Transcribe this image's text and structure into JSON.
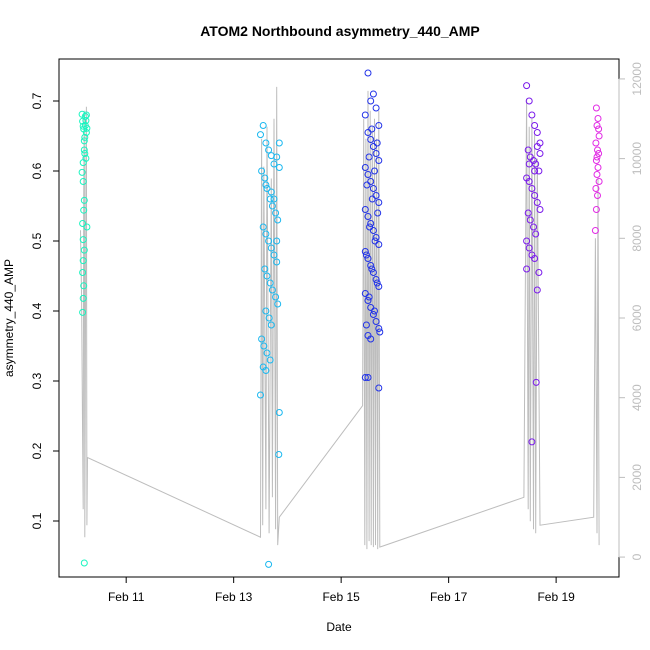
{
  "chart_data": {
    "type": "scatter",
    "title": "ATOM2 Northbound asymmetry_440_AMP",
    "xlabel": "Date",
    "ylabel": "asymmetry_440_AMP",
    "x_ticks": [
      "Feb 11",
      "Feb 13",
      "Feb 15",
      "Feb 17",
      "Feb 19"
    ],
    "x_tick_positions_days": [
      11,
      13,
      15,
      17,
      19
    ],
    "xlim_days": [
      9.75,
      20.17
    ],
    "ylim": [
      0.02,
      0.76
    ],
    "y_ticks": [
      0.1,
      0.2,
      0.3,
      0.4,
      0.5,
      0.6,
      0.7
    ],
    "y2lim": [
      -500,
      12500
    ],
    "y2_ticks": [
      0,
      2000,
      4000,
      6000,
      8000,
      10000,
      12000
    ],
    "grid": false,
    "line_color": "#bdbdbd",
    "series": [
      {
        "color": "#19f5c0",
        "points": [
          [
            10.18,
            0.681
          ],
          [
            10.2,
            0.664
          ],
          [
            10.22,
            0.643
          ],
          [
            10.24,
            0.678
          ],
          [
            10.26,
            0.655
          ],
          [
            10.19,
            0.671
          ],
          [
            10.21,
            0.66
          ],
          [
            10.23,
            0.648
          ],
          [
            10.25,
            0.672
          ],
          [
            10.27,
            0.661
          ],
          [
            10.18,
            0.598
          ],
          [
            10.2,
            0.585
          ],
          [
            10.22,
            0.558
          ],
          [
            10.21,
            0.544
          ],
          [
            10.19,
            0.525
          ],
          [
            10.2,
            0.502
          ],
          [
            10.22,
            0.487
          ],
          [
            10.2,
            0.472
          ],
          [
            10.19,
            0.455
          ],
          [
            10.21,
            0.436
          ],
          [
            10.2,
            0.418
          ],
          [
            10.19,
            0.398
          ],
          [
            10.23,
            0.625
          ],
          [
            10.25,
            0.618
          ],
          [
            10.27,
            0.52
          ],
          [
            10.22,
            0.04
          ],
          [
            10.24,
            0.665
          ],
          [
            10.26,
            0.68
          ],
          [
            10.2,
            0.612
          ],
          [
            10.22,
            0.63
          ]
        ]
      },
      {
        "color": "#1ab8f0",
        "points": [
          [
            13.5,
            0.652
          ],
          [
            13.55,
            0.665
          ],
          [
            13.6,
            0.64
          ],
          [
            13.65,
            0.63
          ],
          [
            13.7,
            0.622
          ],
          [
            13.75,
            0.61
          ],
          [
            13.8,
            0.62
          ],
          [
            13.85,
            0.605
          ],
          [
            13.52,
            0.6
          ],
          [
            13.58,
            0.59
          ],
          [
            13.62,
            0.575
          ],
          [
            13.68,
            0.56
          ],
          [
            13.72,
            0.55
          ],
          [
            13.78,
            0.54
          ],
          [
            13.82,
            0.53
          ],
          [
            13.55,
            0.52
          ],
          [
            13.6,
            0.51
          ],
          [
            13.65,
            0.5
          ],
          [
            13.7,
            0.49
          ],
          [
            13.75,
            0.48
          ],
          [
            13.8,
            0.47
          ],
          [
            13.58,
            0.46
          ],
          [
            13.62,
            0.45
          ],
          [
            13.68,
            0.44
          ],
          [
            13.72,
            0.43
          ],
          [
            13.78,
            0.42
          ],
          [
            13.82,
            0.41
          ],
          [
            13.6,
            0.4
          ],
          [
            13.66,
            0.39
          ],
          [
            13.7,
            0.38
          ],
          [
            13.52,
            0.36
          ],
          [
            13.56,
            0.35
          ],
          [
            13.62,
            0.34
          ],
          [
            13.68,
            0.33
          ],
          [
            13.55,
            0.32
          ],
          [
            13.6,
            0.315
          ],
          [
            13.5,
            0.28
          ],
          [
            13.85,
            0.255
          ],
          [
            13.84,
            0.195
          ],
          [
            13.65,
            0.038
          ],
          [
            13.75,
            0.56
          ],
          [
            13.7,
            0.57
          ],
          [
            13.6,
            0.58
          ],
          [
            13.8,
            0.5
          ],
          [
            13.85,
            0.64
          ]
        ]
      },
      {
        "color": "#2233e8",
        "points": [
          [
            15.5,
            0.74
          ],
          [
            15.6,
            0.71
          ],
          [
            15.55,
            0.7
          ],
          [
            15.65,
            0.69
          ],
          [
            15.45,
            0.68
          ],
          [
            15.7,
            0.665
          ],
          [
            15.5,
            0.655
          ],
          [
            15.55,
            0.645
          ],
          [
            15.6,
            0.635
          ],
          [
            15.65,
            0.625
          ],
          [
            15.7,
            0.615
          ],
          [
            15.45,
            0.605
          ],
          [
            15.5,
            0.595
          ],
          [
            15.55,
            0.585
          ],
          [
            15.6,
            0.575
          ],
          [
            15.65,
            0.565
          ],
          [
            15.7,
            0.555
          ],
          [
            15.45,
            0.545
          ],
          [
            15.5,
            0.535
          ],
          [
            15.55,
            0.525
          ],
          [
            15.6,
            0.515
          ],
          [
            15.65,
            0.505
          ],
          [
            15.7,
            0.495
          ],
          [
            15.45,
            0.485
          ],
          [
            15.5,
            0.475
          ],
          [
            15.55,
            0.465
          ],
          [
            15.6,
            0.455
          ],
          [
            15.65,
            0.445
          ],
          [
            15.7,
            0.435
          ],
          [
            15.45,
            0.425
          ],
          [
            15.5,
            0.415
          ],
          [
            15.55,
            0.405
          ],
          [
            15.6,
            0.395
          ],
          [
            15.65,
            0.385
          ],
          [
            15.7,
            0.375
          ],
          [
            15.5,
            0.365
          ],
          [
            15.55,
            0.36
          ],
          [
            15.45,
            0.305
          ],
          [
            15.5,
            0.305
          ],
          [
            15.7,
            0.29
          ],
          [
            15.52,
            0.62
          ],
          [
            15.62,
            0.6
          ],
          [
            15.48,
            0.58
          ],
          [
            15.58,
            0.56
          ],
          [
            15.68,
            0.54
          ],
          [
            15.53,
            0.52
          ],
          [
            15.63,
            0.5
          ],
          [
            15.47,
            0.48
          ],
          [
            15.57,
            0.46
          ],
          [
            15.67,
            0.44
          ],
          [
            15.52,
            0.42
          ],
          [
            15.62,
            0.4
          ],
          [
            15.47,
            0.38
          ],
          [
            15.57,
            0.66
          ],
          [
            15.67,
            0.64
          ],
          [
            15.72,
            0.37
          ]
        ]
      },
      {
        "color": "#7a1aeb",
        "points": [
          [
            18.45,
            0.722
          ],
          [
            18.5,
            0.7
          ],
          [
            18.55,
            0.68
          ],
          [
            18.6,
            0.665
          ],
          [
            18.65,
            0.655
          ],
          [
            18.7,
            0.64
          ],
          [
            18.48,
            0.63
          ],
          [
            18.52,
            0.62
          ],
          [
            18.58,
            0.615
          ],
          [
            18.62,
            0.61
          ],
          [
            18.68,
            0.6
          ],
          [
            18.45,
            0.59
          ],
          [
            18.5,
            0.585
          ],
          [
            18.55,
            0.575
          ],
          [
            18.6,
            0.565
          ],
          [
            18.65,
            0.555
          ],
          [
            18.7,
            0.545
          ],
          [
            18.48,
            0.54
          ],
          [
            18.52,
            0.53
          ],
          [
            18.58,
            0.52
          ],
          [
            18.62,
            0.51
          ],
          [
            18.45,
            0.5
          ],
          [
            18.5,
            0.49
          ],
          [
            18.55,
            0.48
          ],
          [
            18.6,
            0.475
          ],
          [
            18.45,
            0.46
          ],
          [
            18.68,
            0.455
          ],
          [
            18.65,
            0.43
          ],
          [
            18.63,
            0.298
          ],
          [
            18.55,
            0.213
          ],
          [
            18.7,
            0.625
          ],
          [
            18.5,
            0.61
          ],
          [
            18.6,
            0.6
          ],
          [
            18.65,
            0.635
          ]
        ]
      },
      {
        "color": "#e22ae5",
        "points": [
          [
            19.75,
            0.69
          ],
          [
            19.78,
            0.675
          ],
          [
            19.76,
            0.665
          ],
          [
            19.8,
            0.65
          ],
          [
            19.74,
            0.64
          ],
          [
            19.77,
            0.63
          ],
          [
            19.79,
            0.625
          ],
          [
            19.75,
            0.615
          ],
          [
            19.78,
            0.605
          ],
          [
            19.76,
            0.595
          ],
          [
            19.8,
            0.585
          ],
          [
            19.74,
            0.575
          ],
          [
            19.77,
            0.565
          ],
          [
            19.75,
            0.545
          ],
          [
            19.73,
            0.515
          ],
          [
            19.79,
            0.66
          ],
          [
            19.76,
            0.62
          ]
        ]
      }
    ],
    "line_series": [
      {
        "name": "",
        "x": [
          10.15,
          10.17,
          10.19,
          10.2,
          10.21,
          10.22,
          10.23,
          10.24,
          10.25,
          10.26,
          10.27,
          10.28,
          13.5,
          13.52,
          13.54,
          13.56,
          13.6,
          13.62,
          13.66,
          13.7,
          13.72,
          13.75,
          13.78,
          13.8,
          13.82,
          13.85,
          15.4,
          15.42,
          15.44,
          15.46,
          15.48,
          15.5,
          15.52,
          15.54,
          15.56,
          15.58,
          15.6,
          15.62,
          15.64,
          15.66,
          15.68,
          15.7,
          15.72,
          18.4,
          18.45,
          18.48,
          18.5,
          18.52,
          18.55,
          18.58,
          18.6,
          18.62,
          18.65,
          18.7,
          19.7,
          19.73,
          19.76,
          19.78,
          19.8
        ],
        "values": [
          8200,
          6500,
          3000,
          1200,
          9000,
          11200,
          500,
          4000,
          9500,
          11300,
          800,
          2500,
          500,
          10500,
          800,
          9800,
          1200,
          10800,
          600,
          9500,
          1500,
          11000,
          700,
          11800,
          300,
          1000,
          3800,
          11000,
          300,
          10500,
          200,
          11700,
          400,
          11200,
          300,
          10800,
          250,
          11000,
          300,
          10500,
          200,
          11200,
          250,
          1500,
          11500,
          1200,
          10800,
          900,
          11000,
          700,
          10600,
          600,
          10000,
          800,
          1000,
          8000,
          600,
          9500,
          300
        ]
      }
    ]
  }
}
